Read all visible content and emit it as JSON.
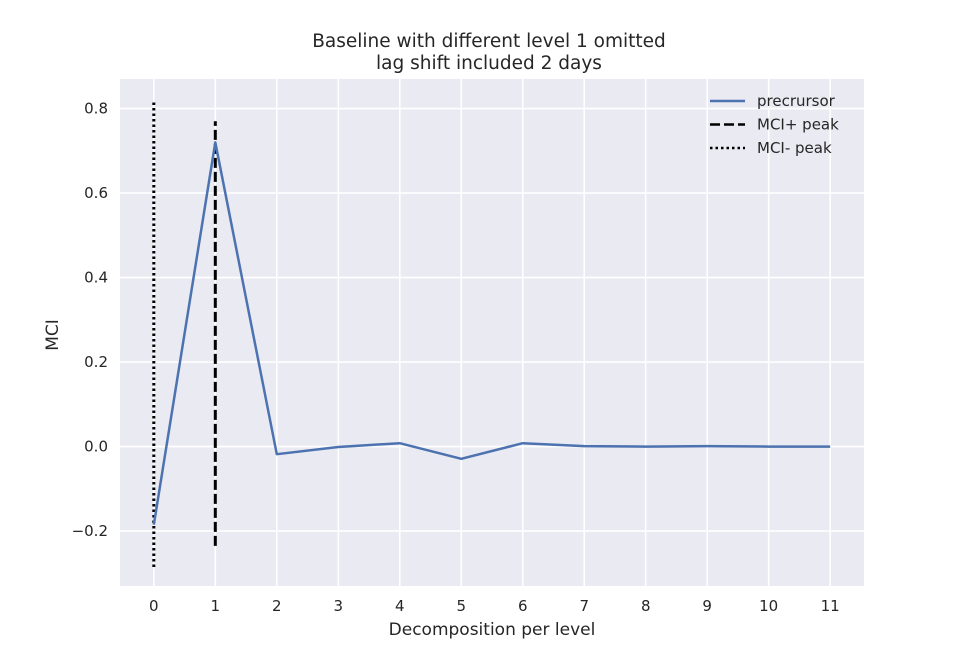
{
  "chart_data": {
    "type": "line",
    "title": "Baseline with different level 1 omitted",
    "subtitle": "lag shift included 2 days",
    "xlabel": "Decomposition per level",
    "ylabel": "MCI",
    "xlim": [
      -0.55,
      11.55
    ],
    "ylim": [
      -0.33,
      0.87
    ],
    "x_ticks": [
      0,
      1,
      2,
      3,
      4,
      5,
      6,
      7,
      8,
      9,
      10,
      11
    ],
    "y_ticks": [
      -0.2,
      0.0,
      0.2,
      0.4,
      0.6,
      0.8
    ],
    "y_tick_labels": [
      "−0.2",
      "0.0",
      "0.2",
      "0.4",
      "0.6",
      "0.8"
    ],
    "grid": true,
    "legend_position": "top-right",
    "background_color": "#eaeaf2",
    "series": [
      {
        "name": "precrursor",
        "style": "solid",
        "color": "#4c72b0",
        "x": [
          0,
          1,
          2,
          3,
          4,
          5,
          6,
          7,
          8,
          9,
          10,
          11
        ],
        "y": [
          -0.185,
          0.72,
          -0.018,
          -0.001,
          0.008,
          -0.029,
          0.008,
          0.001,
          0.0,
          0.001,
          0.0,
          0.0
        ]
      }
    ],
    "vlines": [
      {
        "name": "MCI+ peak",
        "style": "dashed",
        "color": "#000000",
        "x": 1,
        "y_from": -0.235,
        "y_to": 0.77
      },
      {
        "name": "MCI- peak",
        "style": "dotted",
        "color": "#000000",
        "x": 0,
        "y_from": -0.285,
        "y_to": 0.815
      }
    ]
  }
}
